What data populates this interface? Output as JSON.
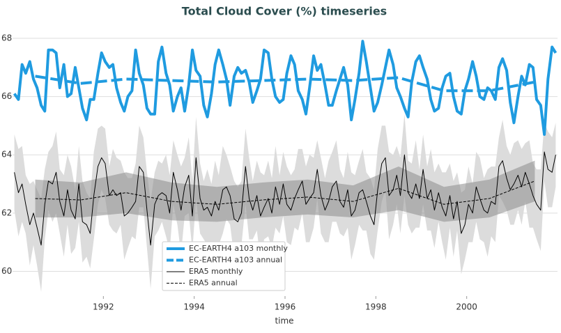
{
  "chart_data": {
    "type": "line",
    "title": "Total Cloud Cover (%) timeseries",
    "xlabel": "time",
    "xlim": [
      1990,
      2002
    ],
    "ylim": [
      59.15,
      68.55
    ],
    "xticks": [
      1992,
      1994,
      1996,
      1998,
      2000
    ],
    "yticks": [
      60,
      62,
      64,
      66,
      68
    ],
    "grid": true,
    "legend": "lower center",
    "x": [
      1990.04,
      1990.13,
      1990.21,
      1990.29,
      1990.38,
      1990.46,
      1990.54,
      1990.63,
      1990.71,
      1990.79,
      1990.88,
      1990.96,
      1991.04,
      1991.13,
      1991.21,
      1991.29,
      1991.38,
      1991.46,
      1991.54,
      1991.63,
      1991.71,
      1991.79,
      1991.88,
      1991.96,
      1992.04,
      1992.13,
      1992.21,
      1992.29,
      1992.38,
      1992.46,
      1992.54,
      1992.63,
      1992.71,
      1992.79,
      1992.88,
      1992.96,
      1993.04,
      1993.13,
      1993.21,
      1993.29,
      1993.38,
      1993.46,
      1993.54,
      1993.63,
      1993.71,
      1993.79,
      1993.88,
      1993.96,
      1994.04,
      1994.13,
      1994.21,
      1994.29,
      1994.38,
      1994.46,
      1994.54,
      1994.63,
      1994.71,
      1994.79,
      1994.88,
      1994.96,
      1995.04,
      1995.13,
      1995.21,
      1995.29,
      1995.38,
      1995.46,
      1995.54,
      1995.63,
      1995.71,
      1995.79,
      1995.88,
      1995.96,
      1996.04,
      1996.13,
      1996.21,
      1996.29,
      1996.38,
      1996.46,
      1996.54,
      1996.63,
      1996.71,
      1996.79,
      1996.88,
      1996.96,
      1997.04,
      1997.13,
      1997.21,
      1997.29,
      1997.38,
      1997.46,
      1997.54,
      1997.63,
      1997.71,
      1997.79,
      1997.88,
      1997.96,
      1998.04,
      1998.13,
      1998.21,
      1998.29,
      1998.38,
      1998.46,
      1998.54,
      1998.63,
      1998.71,
      1998.79,
      1998.88,
      1998.96,
      1999.04,
      1999.13,
      1999.21,
      1999.29,
      1999.38,
      1999.46,
      1999.54,
      1999.63,
      1999.71,
      1999.79,
      1999.88,
      1999.96,
      2000.04,
      2000.13,
      2000.21,
      2000.29,
      2000.38,
      2000.46,
      2000.54,
      2000.63,
      2000.71,
      2000.79,
      2000.88,
      2000.96,
      2001.04,
      2001.13,
      2001.21,
      2001.29,
      2001.38,
      2001.46,
      2001.54,
      2001.63,
      2001.71,
      2001.79,
      2001.88,
      2001.96
    ],
    "series": [
      {
        "name": "EC-EARTH4 a103 monthly",
        "color": "#1f9be0",
        "linewidth": 4,
        "linestyle": "solid",
        "values": [
          66.1,
          65.9,
          67.1,
          66.8,
          67.2,
          66.6,
          66.3,
          65.7,
          65.5,
          67.6,
          67.6,
          67.5,
          66.3,
          67.1,
          66.0,
          66.1,
          67.0,
          66.3,
          65.6,
          65.2,
          65.9,
          65.9,
          66.8,
          67.5,
          67.2,
          67.0,
          67.1,
          66.3,
          65.8,
          65.5,
          66.0,
          66.2,
          67.6,
          66.8,
          66.4,
          65.6,
          65.4,
          65.4,
          67.2,
          67.7,
          66.8,
          66.4,
          65.5,
          66.0,
          66.3,
          65.5,
          66.4,
          67.6,
          66.9,
          66.7,
          65.7,
          65.3,
          66.1,
          67.1,
          67.6,
          67.1,
          66.6,
          65.7,
          66.7,
          67.0,
          66.8,
          66.9,
          66.5,
          65.8,
          66.2,
          66.6,
          67.6,
          67.5,
          66.6,
          66.0,
          65.8,
          65.9,
          66.8,
          67.4,
          67.1,
          66.2,
          65.9,
          65.4,
          66.3,
          67.4,
          66.9,
          67.1,
          66.4,
          65.7,
          65.7,
          66.2,
          66.6,
          67.0,
          66.4,
          65.2,
          65.9,
          66.8,
          67.9,
          67.2,
          66.3,
          65.5,
          65.8,
          66.4,
          67.0,
          67.6,
          67.1,
          66.3,
          66.0,
          65.6,
          65.3,
          66.5,
          67.2,
          67.4,
          67.0,
          66.6,
          65.9,
          65.5,
          65.6,
          66.3,
          66.7,
          66.8,
          66.0,
          65.5,
          65.4,
          66.2,
          66.6,
          67.2,
          66.7,
          66.0,
          65.9,
          66.3,
          66.2,
          65.9,
          67.0,
          67.3,
          66.9,
          65.8,
          65.1,
          66.0,
          66.7,
          66.4,
          67.1,
          67.0,
          65.9,
          65.7,
          64.7,
          66.6,
          67.7,
          67.5
        ]
      },
      {
        "name": "EC-EARTH4 a103 annual",
        "color": "#1f9be0",
        "linewidth": 4,
        "linestyle": "dashed",
        "x": [
          1990.5,
          1991.5,
          1992.5,
          1993.5,
          1994.5,
          1995.5,
          1996.5,
          1997.5,
          1998.5,
          1999.5,
          2000.5,
          2001.5
        ],
        "values": [
          66.7,
          66.45,
          66.6,
          66.55,
          66.5,
          66.55,
          66.6,
          66.55,
          66.65,
          66.2,
          66.2,
          66.5
        ]
      },
      {
        "name": "ERA5 monthly",
        "color": "#000000",
        "linewidth": 1,
        "linestyle": "solid",
        "band_color": "#dcdcdc",
        "values": [
          63.4,
          62.7,
          63.0,
          62.3,
          61.6,
          62.0,
          61.5,
          60.9,
          62.3,
          63.1,
          63.0,
          63.4,
          62.4,
          61.9,
          62.8,
          62.1,
          61.8,
          63.0,
          61.7,
          61.6,
          61.3,
          62.6,
          63.6,
          63.9,
          63.7,
          62.6,
          62.8,
          62.6,
          62.7,
          61.9,
          62.0,
          62.2,
          62.4,
          63.6,
          63.4,
          62.1,
          60.9,
          62.3,
          62.6,
          62.7,
          62.6,
          62.0,
          63.4,
          62.8,
          62.1,
          62.9,
          63.3,
          61.9,
          63.9,
          62.5,
          62.1,
          62.2,
          61.9,
          62.4,
          62.1,
          62.8,
          62.9,
          62.6,
          61.8,
          61.7,
          62.0,
          63.6,
          62.5,
          62.1,
          62.6,
          61.9,
          62.2,
          62.5,
          62.0,
          62.9,
          62.3,
          63.0,
          62.3,
          62.1,
          62.5,
          62.8,
          63.1,
          62.3,
          62.5,
          62.7,
          63.5,
          62.6,
          62.1,
          62.4,
          62.9,
          63.1,
          62.4,
          62.2,
          62.8,
          61.9,
          62.1,
          62.7,
          62.8,
          62.4,
          61.9,
          61.6,
          62.8,
          63.7,
          63.9,
          62.6,
          62.8,
          63.3,
          62.6,
          64.0,
          62.7,
          62.5,
          63.0,
          62.5,
          63.5,
          62.5,
          62.8,
          62.1,
          62.7,
          62.2,
          61.9,
          62.6,
          61.8,
          62.4,
          61.3,
          61.6,
          62.3,
          62.0,
          62.9,
          62.5,
          62.1,
          62.0,
          62.4,
          62.3,
          63.6,
          63.8,
          63.2,
          62.8,
          63.0,
          63.3,
          62.9,
          63.4,
          63.0,
          62.6,
          62.3,
          62.1,
          64.1,
          63.5,
          63.4,
          64.0
        ],
        "spread": [
          1.3,
          1.5,
          1.3,
          1.0,
          1.4,
          1.1,
          1.3,
          1.6,
          1.2,
          1.0,
          1.3,
          1.4,
          1.1,
          1.4,
          1.2,
          1.5,
          1.0,
          1.3,
          1.4,
          1.1,
          1.2,
          1.5,
          1.3,
          1.1,
          1.2,
          1.0,
          1.4,
          1.3,
          1.1,
          1.5,
          1.2,
          1.0,
          1.3,
          1.4,
          1.2,
          1.3,
          1.5,
          1.1,
          1.2,
          1.0,
          1.4,
          1.3,
          1.1,
          1.2,
          1.5,
          1.0,
          1.3,
          1.2,
          1.4,
          1.2,
          1.0,
          1.3,
          1.1,
          1.4,
          1.2,
          1.5,
          1.1,
          1.0,
          1.3,
          1.2,
          1.1,
          1.3,
          1.4,
          1.0,
          1.2,
          1.5,
          1.1,
          1.3,
          1.2,
          1.4,
          1.0,
          1.1,
          1.3,
          1.2,
          1.0,
          1.4,
          1.1,
          1.3,
          1.5,
          1.2,
          1.0,
          1.3,
          1.1,
          1.4,
          1.2,
          1.4,
          1.1,
          1.0,
          1.3,
          1.5,
          1.2,
          1.1,
          1.4,
          1.0,
          1.3,
          1.2,
          1.4,
          1.3,
          1.1,
          1.5,
          1.2,
          1.0,
          1.3,
          1.4,
          1.1,
          1.2,
          1.5,
          1.0,
          1.2,
          1.1,
          1.4,
          1.3,
          1.0,
          1.2,
          1.5,
          1.1,
          1.3,
          1.0,
          1.4,
          1.2,
          1.3,
          1.0,
          1.2,
          1.4,
          1.1,
          1.5,
          1.2,
          1.3,
          1.0,
          1.4,
          1.1,
          1.2,
          1.4,
          1.2,
          1.3,
          1.0,
          1.5,
          1.1,
          1.2,
          1.4,
          1.0,
          1.3,
          1.2,
          1.1
        ]
      },
      {
        "name": "ERA5 annual",
        "color": "#000000",
        "linewidth": 1,
        "linestyle": "dashed",
        "band_color": "#8c8c8c",
        "x": [
          1990.5,
          1991.5,
          1992.5,
          1993.5,
          1994.5,
          1995.5,
          1996.5,
          1997.5,
          1998.5,
          1999.5,
          2000.5,
          2001.5
        ],
        "values": [
          62.5,
          62.45,
          62.7,
          62.4,
          62.3,
          62.45,
          62.55,
          62.4,
          62.85,
          62.3,
          62.5,
          63.1
        ],
        "spread": [
          0.65,
          0.6,
          0.7,
          0.65,
          0.6,
          0.6,
          0.6,
          0.55,
          0.75,
          0.6,
          0.65,
          0.7
        ]
      }
    ]
  }
}
